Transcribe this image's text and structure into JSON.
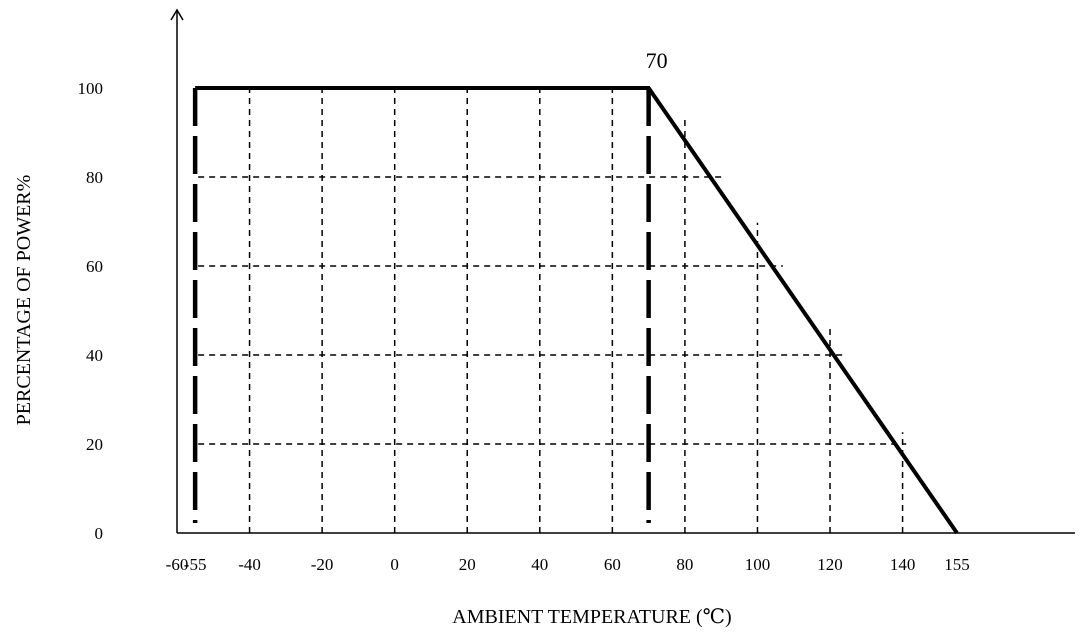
{
  "chart_data": {
    "type": "line",
    "title": "",
    "xlabel": "AMBIENT TEMPERATURE (℃)",
    "ylabel": "PERCENTAGE OF POWER%",
    "xlim": [
      -60,
      155
    ],
    "ylim": [
      0,
      100
    ],
    "grid": true,
    "x_ticks": [
      -60,
      -55,
      -40,
      -20,
      0,
      20,
      40,
      60,
      80,
      100,
      120,
      140,
      155
    ],
    "x_tick_labels": [
      "-60",
      "-55",
      "-40",
      "-20",
      "0",
      "20",
      "40",
      "60",
      "80",
      "100",
      "120",
      "140",
      "155"
    ],
    "y_ticks": [
      0,
      20,
      40,
      60,
      80,
      100
    ],
    "y_tick_labels": [
      "0",
      "20",
      "40",
      "60",
      "80",
      "100"
    ],
    "series": [
      {
        "x": [
          -55,
          70,
          155
        ],
        "y": [
          100,
          100,
          0
        ]
      }
    ],
    "annotations": [
      {
        "text": "70",
        "x": 70,
        "y": 100
      }
    ],
    "colors": {
      "line": "#000000",
      "grid": "#000000"
    }
  }
}
